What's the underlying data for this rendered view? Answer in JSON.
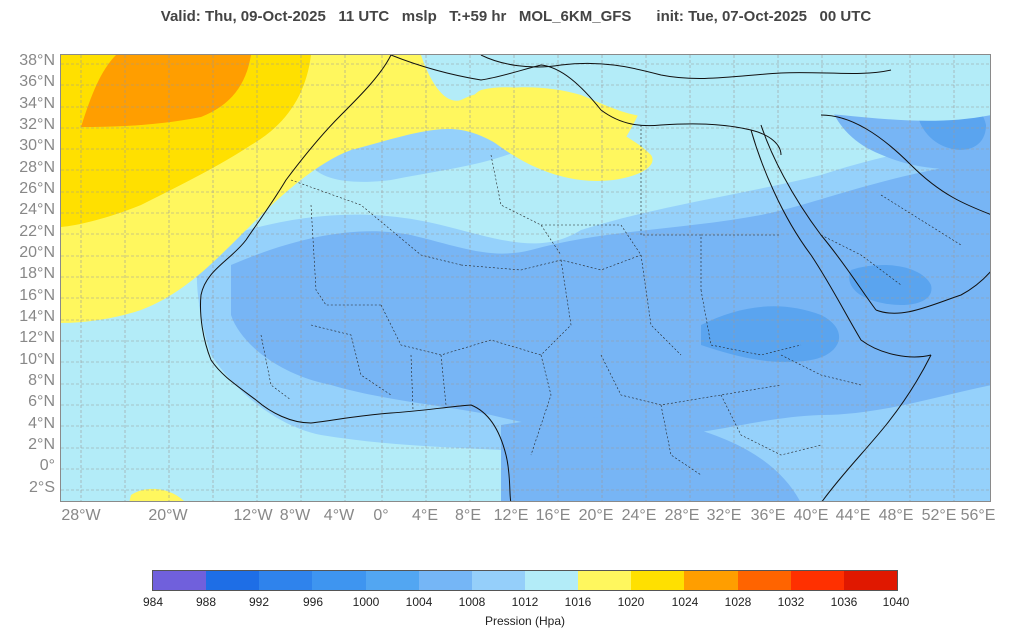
{
  "header": {
    "valid": "Valid: Thu, 09-Oct-2025",
    "valid_hour": "11 UTC",
    "field": "mslp",
    "lead": "T:+59 hr",
    "model": "MOL_6KM_GFS",
    "init": "init: Tue, 07-Oct-2025",
    "init_hour": "00 UTC"
  },
  "map": {
    "lat_labels": [
      "38°N",
      "36°N",
      "34°N",
      "32°N",
      "30°N",
      "28°N",
      "26°N",
      "24°N",
      "22°N",
      "20°N",
      "18°N",
      "16°N",
      "14°N",
      "12°N",
      "10°N",
      "8°N",
      "6°N",
      "4°N",
      "2°N",
      "0°",
      "2°S"
    ],
    "lon_labels": [
      "28°W",
      "20°W",
      "12°W",
      "8°W",
      "4°W",
      "0°",
      "4°E",
      "8°E",
      "12°E",
      "16°E",
      "20°E",
      "24°E",
      "28°E",
      "32°E",
      "36°E",
      "40°E",
      "44°E",
      "48°E",
      "52°E",
      "56°E"
    ],
    "colors": {
      "c1012": "#b3ecf8",
      "c1008": "#95d1fb",
      "c1004": "#77b5f5",
      "c1000": "#5aa4ef",
      "c1016": "#fff75e",
      "c1020": "#ffe000",
      "c1024": "#ff9e00",
      "coast": "#111111",
      "grid": "#9a9a9a"
    }
  },
  "colorbar": {
    "title": "Pression (Hpa)",
    "ticks": [
      "984",
      "988",
      "992",
      "996",
      "1000",
      "1004",
      "1008",
      "1012",
      "1016",
      "1020",
      "1024",
      "1028",
      "1032",
      "1036",
      "1040"
    ],
    "colors": [
      "#7060dc",
      "#1e6ee6",
      "#2f83ec",
      "#3e95f0",
      "#52a6f2",
      "#75b6f6",
      "#95cffa",
      "#b3ecf8",
      "#fff75e",
      "#ffe000",
      "#ff9e00",
      "#ff6400",
      "#ff3000",
      "#e01800"
    ]
  }
}
